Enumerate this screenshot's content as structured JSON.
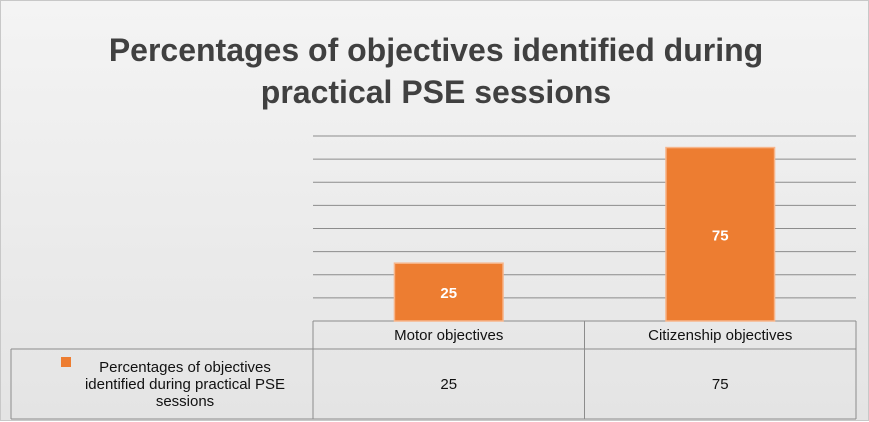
{
  "chart_data": {
    "type": "bar",
    "title": "Percentages of objectives identified during practical PSE sessions",
    "categories": [
      "Motor objectives",
      "Citizenship objectives"
    ],
    "series": [
      {
        "name": "Percentages of objectives identified during practical PSE sessions",
        "color": "#ed7d31",
        "values": [
          25,
          75
        ]
      }
    ],
    "ylim": [
      0,
      80
    ],
    "yticks": [
      0,
      10,
      20,
      30,
      40,
      50,
      60,
      70,
      80
    ],
    "grid": true,
    "data_table": true
  }
}
